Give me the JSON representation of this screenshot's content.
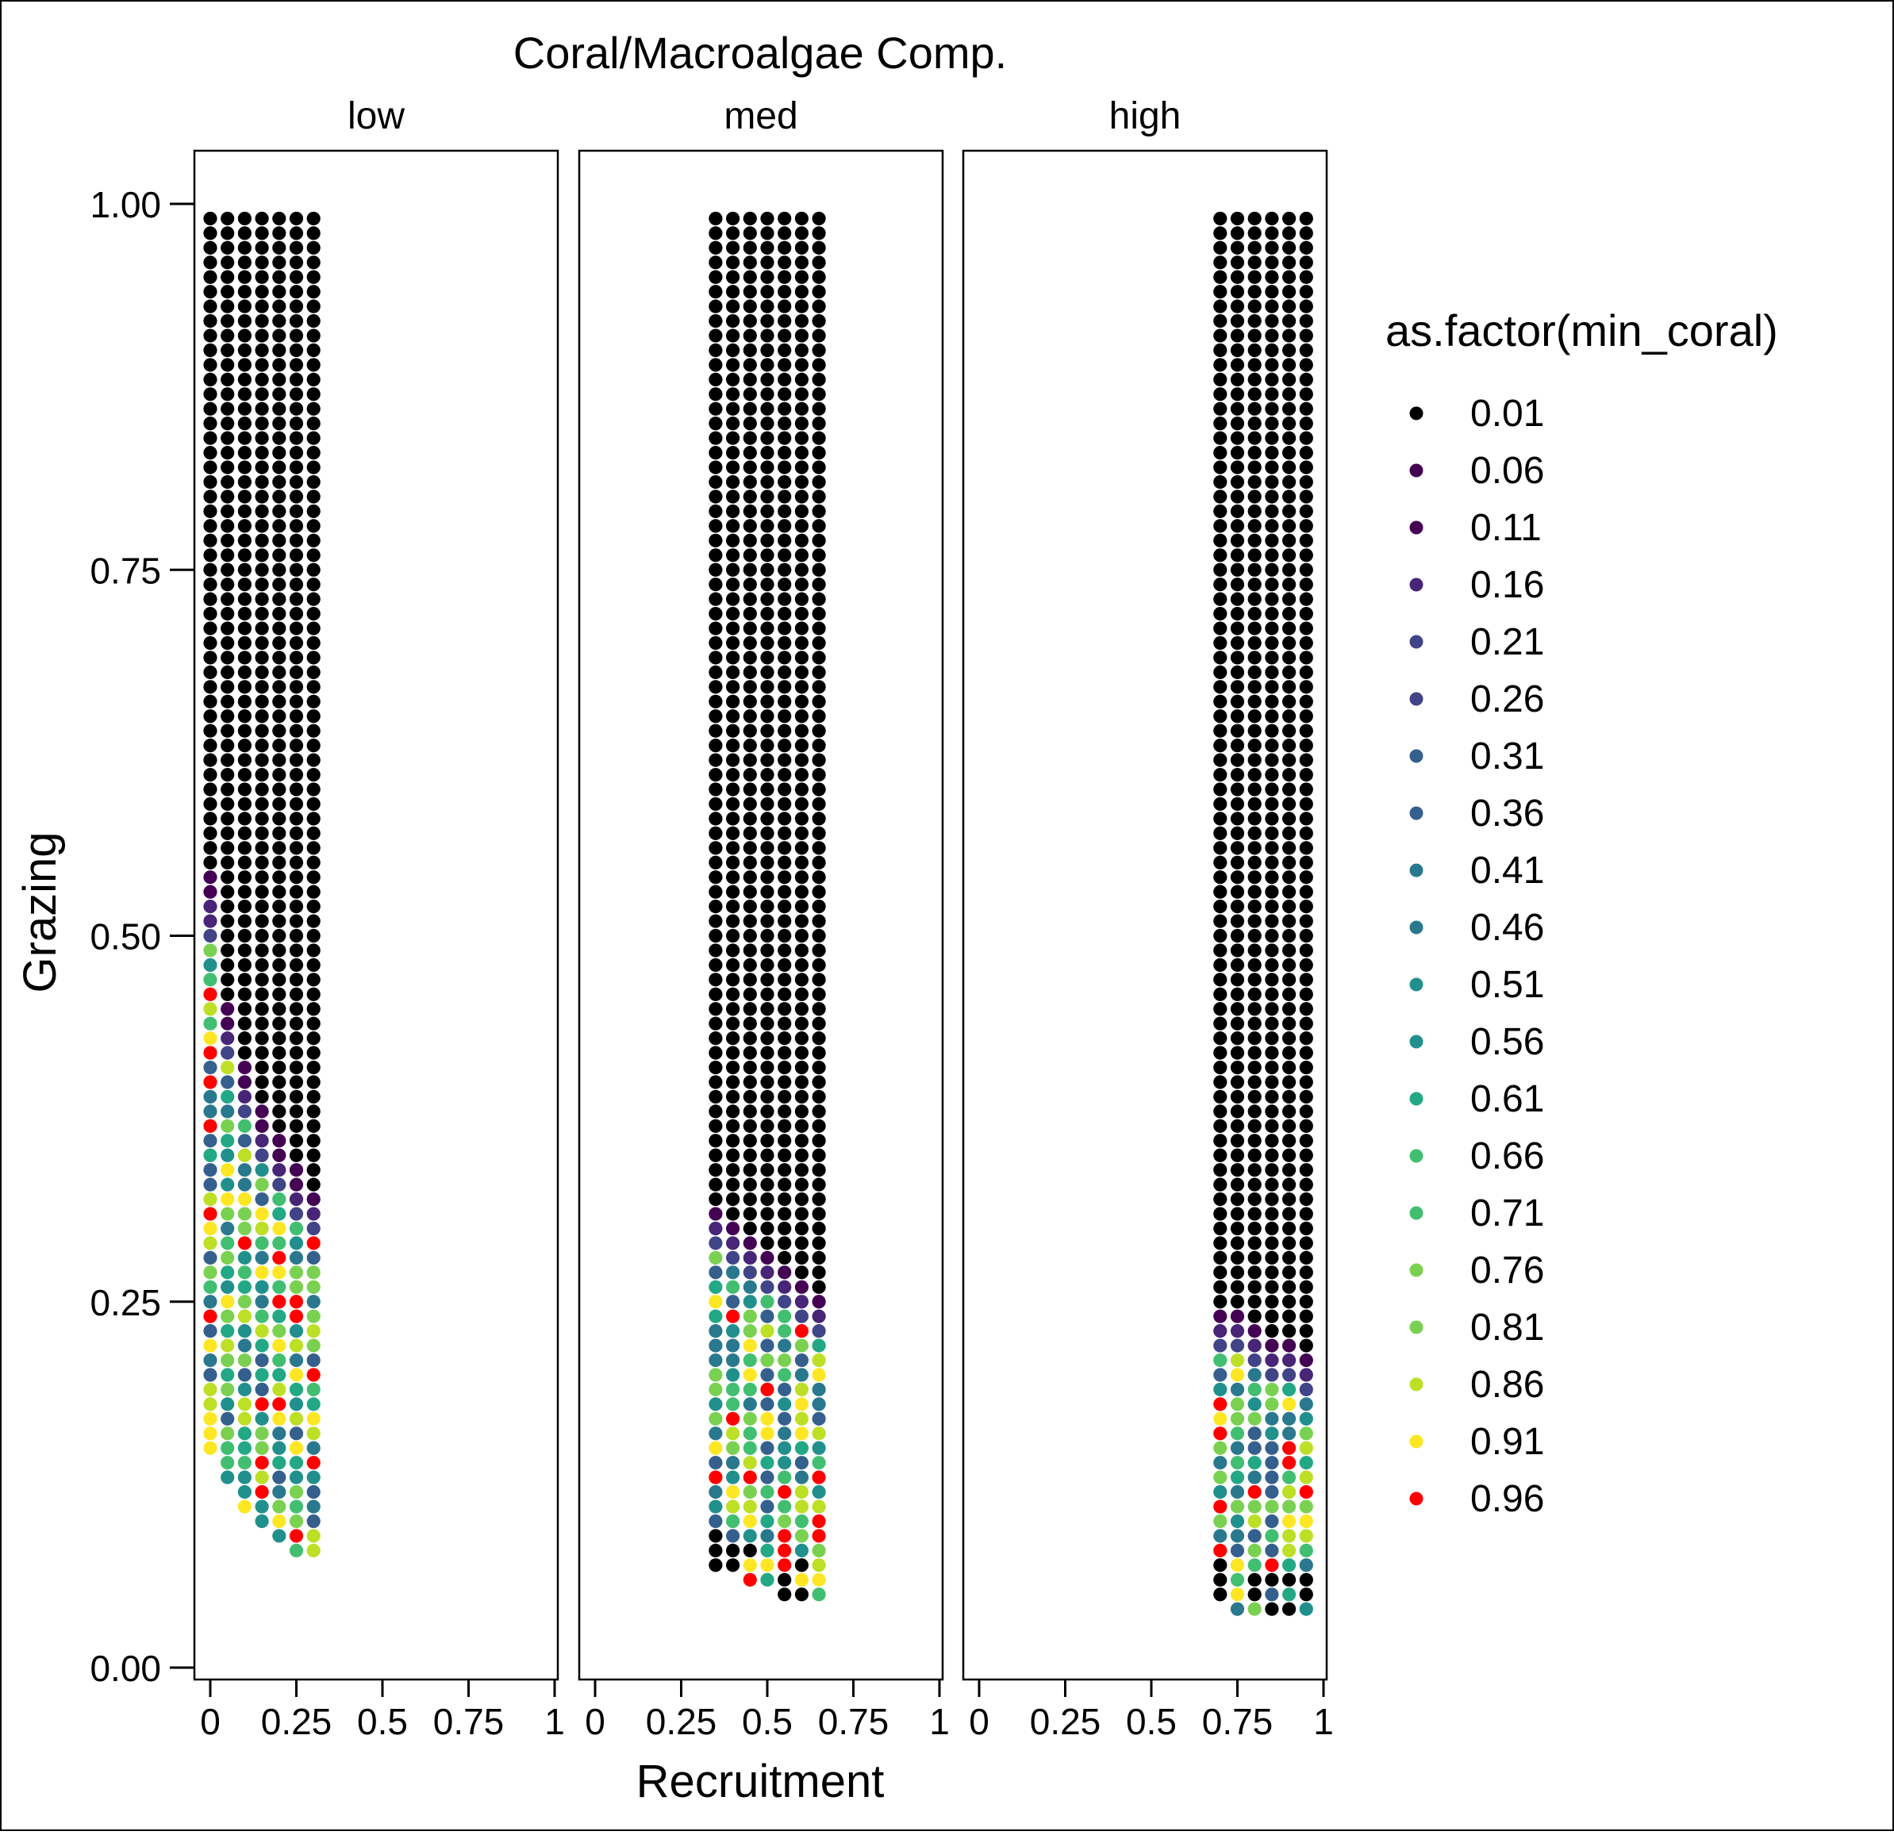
{
  "chart_data": {
    "type": "scatter",
    "title": "Coral/Macroalgae Comp.",
    "xlabel": "Recruitment",
    "ylabel": "Grazing",
    "xlim": [
      0,
      1
    ],
    "ylim": [
      0,
      1
    ],
    "x_ticks": [
      "0",
      "0.25",
      "0.5",
      "0.75",
      "1"
    ],
    "y_ticks": [
      "0.00",
      "0.25",
      "0.50",
      "0.75",
      "1.00"
    ],
    "grid": false,
    "legend": {
      "title": "as.factor(min_coral)",
      "position": "right",
      "levels": [
        "0.01",
        "0.06",
        "0.11",
        "0.16",
        "0.21",
        "0.26",
        "0.31",
        "0.36",
        "0.41",
        "0.46",
        "0.51",
        "0.56",
        "0.61",
        "0.66",
        "0.71",
        "0.76",
        "0.81",
        "0.86",
        "0.91",
        "0.96"
      ],
      "colors": [
        "#000000",
        "#440154",
        "#482576",
        "#414487",
        "#35608d",
        "#2a788e",
        "#21908d",
        "#22a884",
        "#42be71",
        "#7ad151",
        "#bddf26",
        "#fde725",
        "#ff0000"
      ]
    },
    "facets": [
      {
        "label": "low",
        "x": [
          0,
          0.05,
          0.1,
          0.15,
          0.2,
          0.25,
          0.3
        ],
        "y_top": 0.99,
        "y_step": 0.01,
        "columns": [
          {
            "x": 0,
            "black_above": 0.54,
            "y_min": 0.15
          },
          {
            "x": 0.05,
            "black_above": 0.45,
            "y_min": 0.13
          },
          {
            "x": 0.1,
            "black_above": 0.41,
            "y_min": 0.11
          },
          {
            "x": 0.15,
            "black_above": 0.38,
            "y_min": 0.1
          },
          {
            "x": 0.2,
            "black_above": 0.36,
            "y_min": 0.09
          },
          {
            "x": 0.25,
            "black_above": 0.34,
            "y_min": 0.08
          },
          {
            "x": 0.3,
            "black_above": 0.32,
            "y_min": 0.08
          }
        ]
      },
      {
        "label": "med",
        "x": [
          0.35,
          0.4,
          0.45,
          0.5,
          0.55,
          0.6,
          0.65
        ],
        "y_top": 0.99,
        "y_step": 0.01,
        "columns": [
          {
            "x": 0.35,
            "black_above": 0.31,
            "y_min": 0.07
          },
          {
            "x": 0.4,
            "black_above": 0.3,
            "y_min": 0.07
          },
          {
            "x": 0.45,
            "black_above": 0.29,
            "y_min": 0.06
          },
          {
            "x": 0.5,
            "black_above": 0.28,
            "y_min": 0.06
          },
          {
            "x": 0.55,
            "black_above": 0.27,
            "y_min": 0.05
          },
          {
            "x": 0.6,
            "black_above": 0.26,
            "y_min": 0.05
          },
          {
            "x": 0.65,
            "black_above": 0.25,
            "y_min": 0.05
          }
        ]
      },
      {
        "label": "high",
        "x": [
          0.7,
          0.75,
          0.8,
          0.85,
          0.9,
          0.95
        ],
        "y_top": 0.99,
        "y_step": 0.01,
        "columns": [
          {
            "x": 0.7,
            "black_above": 0.24,
            "y_min": 0.05
          },
          {
            "x": 0.75,
            "black_above": 0.24,
            "y_min": 0.04
          },
          {
            "x": 0.8,
            "black_above": 0.23,
            "y_min": 0.04
          },
          {
            "x": 0.85,
            "black_above": 0.22,
            "y_min": 0.04
          },
          {
            "x": 0.9,
            "black_above": 0.22,
            "y_min": 0.04
          },
          {
            "x": 0.95,
            "black_above": 0.21,
            "y_min": 0.04
          }
        ]
      }
    ]
  }
}
